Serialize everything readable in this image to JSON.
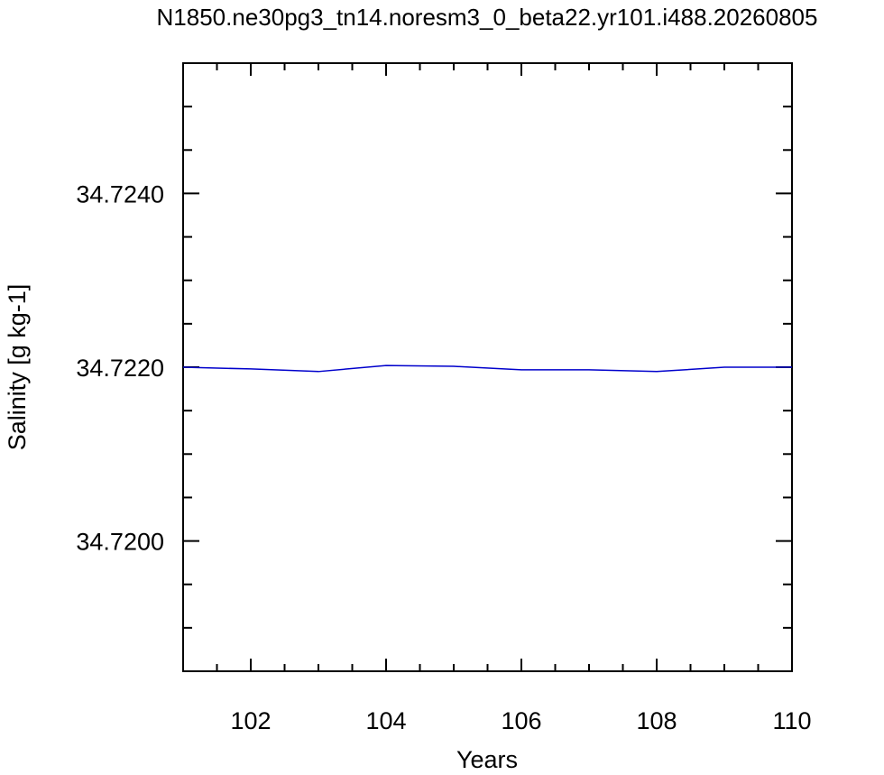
{
  "chart_data": {
    "type": "line",
    "title": "N1850.ne30pg3_tn14.noresm3_0_beta22.yr101.i488.20260805",
    "xlabel": "Years",
    "ylabel": "Salinity [g kg-1]",
    "xlim": [
      101,
      110
    ],
    "ylim": [
      34.7185,
      34.7255
    ],
    "x_major_ticks": [
      102,
      104,
      106,
      108,
      110
    ],
    "x_tick_labels": [
      "102",
      "104",
      "106",
      "108",
      "110"
    ],
    "y_major_ticks": [
      34.72,
      34.722,
      34.724
    ],
    "y_tick_labels": [
      "34.7200",
      "34.7220",
      "34.7240"
    ],
    "grid": false,
    "series": [
      {
        "color": "#0000cc",
        "x": [
          101,
          102,
          103,
          104,
          105,
          106,
          107,
          108,
          109,
          110
        ],
        "values": [
          34.722,
          34.72198,
          34.72195,
          34.72202,
          34.72201,
          34.72197,
          34.72197,
          34.72195,
          34.722,
          34.722
        ]
      }
    ]
  }
}
